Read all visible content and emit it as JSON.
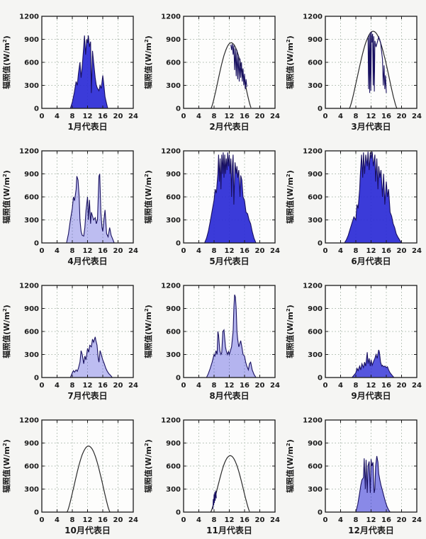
{
  "page": {
    "background": "#f5f5f3",
    "plot_background": "#fdfdfc"
  },
  "axes": {
    "xticks": [
      0,
      4,
      8,
      12,
      16,
      20,
      24
    ],
    "xtick_labels": [
      "0",
      "4",
      "8",
      "12",
      "16",
      "20",
      "24"
    ],
    "yticks": [
      0,
      300,
      600,
      900,
      1200
    ],
    "ytick_labels": [
      "0",
      "300",
      "600",
      "900",
      "1200"
    ],
    "xlim": [
      0,
      24
    ],
    "ylim": [
      0,
      1200
    ],
    "grid": "on",
    "grid_color": "#a9b7aa",
    "border_color": "#1a1a1a",
    "ylabel_pre": "辐照值(W/m",
    "ylabel_sup": "2",
    "ylabel_post": ")",
    "series_fill": "#2a2ad6",
    "series_stroke": "#181060",
    "envelope_stroke": "#2b2b2b"
  },
  "chart_data": [
    {
      "type": "line",
      "month": 1,
      "xlabel": "1月代表日",
      "clear_sky": null,
      "fill_opacity": 0.92,
      "measured": {
        "x": [
          7.5,
          8,
          8.5,
          9,
          9.3,
          9.6,
          10,
          10.3,
          10.6,
          11,
          11.2,
          11.5,
          11.8,
          12,
          12.2,
          12.5,
          12.8,
          13,
          13.3,
          13.6,
          14,
          14.3,
          14.6,
          15,
          15.3,
          15.6,
          16,
          16.3,
          16.6,
          17,
          17.3
        ],
        "y": [
          0,
          80,
          200,
          350,
          300,
          450,
          600,
          400,
          550,
          800,
          950,
          700,
          900,
          850,
          950,
          800,
          870,
          200,
          750,
          600,
          400,
          300,
          260,
          230,
          300,
          260,
          430,
          300,
          150,
          60,
          0
        ]
      }
    },
    {
      "type": "line",
      "month": 2,
      "xlabel": "2月代表日",
      "clear_sky": {
        "rise": 7.2,
        "set": 17.8,
        "peak": 855
      },
      "fill_opacity": 0,
      "measured": {
        "x": [
          12.4,
          12.6,
          12.8,
          13,
          13.2,
          13.4,
          13.6,
          13.8,
          14,
          14.2,
          14.4,
          14.6,
          14.8,
          15,
          15.2,
          15.4,
          15.6,
          15.8,
          16,
          16.2,
          16.4,
          16.6
        ],
        "y": [
          830,
          760,
          840,
          700,
          820,
          500,
          780,
          420,
          760,
          380,
          700,
          350,
          650,
          400,
          600,
          350,
          520,
          300,
          450,
          250,
          380,
          280
        ]
      }
    },
    {
      "type": "line",
      "month": 3,
      "xlabel": "3月代表日",
      "clear_sky": {
        "rise": 6.3,
        "set": 18.8,
        "peak": 1005
      },
      "fill_opacity": 0,
      "measured": {
        "x": [
          11.2,
          11.35,
          11.5,
          11.65,
          11.8,
          11.95,
          12.1,
          12.25,
          12.4,
          12.55,
          12.7,
          12.85,
          13,
          13.15,
          13.3,
          14,
          14.5,
          15,
          15.2,
          15.4,
          15.6,
          15.8,
          16
        ],
        "y": [
          920,
          250,
          960,
          200,
          990,
          230,
          1000,
          860,
          970,
          300,
          940,
          220,
          880,
          840,
          800,
          930,
          860,
          640,
          300,
          560,
          250,
          430,
          200
        ]
      }
    },
    {
      "type": "line",
      "month": 4,
      "xlabel": "4月代表日",
      "clear_sky": null,
      "fill_opacity": 0.3,
      "measured": {
        "x": [
          6.5,
          7,
          7.5,
          8,
          8.3,
          8.6,
          9,
          9.2,
          9.5,
          9.8,
          10,
          10.3,
          10.6,
          11,
          11.3,
          11.6,
          12,
          12.2,
          12.5,
          12.8,
          13,
          13.3,
          13.6,
          14,
          14.3,
          14.6,
          15,
          15.2,
          15.5,
          15.8,
          16,
          16.3,
          16.6,
          17,
          17.4,
          17.8,
          18.2,
          18.6,
          19
        ],
        "y": [
          0,
          120,
          300,
          450,
          600,
          550,
          700,
          870,
          820,
          600,
          300,
          150,
          100,
          90,
          200,
          420,
          600,
          300,
          560,
          250,
          400,
          350,
          300,
          330,
          250,
          300,
          870,
          900,
          400,
          200,
          150,
          300,
          430,
          120,
          80,
          200,
          100,
          50,
          0
        ]
      }
    },
    {
      "type": "line",
      "month": 5,
      "xlabel": "5月代表日",
      "clear_sky": null,
      "fill_opacity": 0.92,
      "measured": {
        "x": [
          5.5,
          6,
          6.5,
          7,
          7.5,
          8,
          8.3,
          8.6,
          9,
          9.2,
          9.4,
          9.6,
          9.8,
          10,
          10.2,
          10.4,
          10.6,
          10.8,
          11,
          11.2,
          11.4,
          11.6,
          11.8,
          12,
          12.2,
          12.4,
          12.6,
          12.8,
          13,
          13.2,
          13.5,
          13.8,
          14,
          14.2,
          14.5,
          14.8,
          15,
          15.3,
          15.6,
          16,
          16.4,
          16.8,
          17.2,
          17.6,
          18,
          18.5,
          19
        ],
        "y": [
          0,
          60,
          150,
          280,
          420,
          560,
          700,
          650,
          900,
          1150,
          800,
          1100,
          700,
          1150,
          900,
          1180,
          850,
          1150,
          900,
          1100,
          950,
          1180,
          1000,
          1150,
          900,
          1100,
          600,
          1000,
          1150,
          500,
          1050,
          900,
          1000,
          850,
          950,
          600,
          880,
          820,
          600,
          550,
          400,
          380,
          300,
          250,
          150,
          60,
          0
        ]
      }
    },
    {
      "type": "line",
      "month": 6,
      "xlabel": "6月代表日",
      "clear_sky": null,
      "fill_opacity": 0.92,
      "measured": {
        "x": [
          5,
          5.5,
          6,
          6.5,
          7,
          7.5,
          8,
          8.3,
          8.6,
          9,
          9.2,
          9.5,
          9.8,
          10,
          10.3,
          10.6,
          11,
          11.2,
          11.5,
          11.8,
          12,
          12.3,
          12.6,
          13,
          13.2,
          13.5,
          13.8,
          14,
          14.3,
          14.6,
          15,
          15.3,
          15.6,
          16,
          16.3,
          16.6,
          17,
          17.4,
          17.8,
          18.2,
          18.6,
          19,
          19.5,
          20
        ],
        "y": [
          0,
          40,
          100,
          180,
          260,
          340,
          300,
          500,
          450,
          700,
          900,
          1150,
          850,
          1180,
          900,
          1150,
          1000,
          1190,
          950,
          1180,
          1100,
          1190,
          1000,
          1150,
          800,
          1100,
          700,
          1000,
          850,
          950,
          600,
          900,
          500,
          800,
          600,
          700,
          400,
          350,
          250,
          200,
          120,
          80,
          40,
          0
        ]
      }
    },
    {
      "type": "line",
      "month": 7,
      "xlabel": "7月代表日",
      "clear_sky": null,
      "fill_opacity": 0.3,
      "measured": {
        "x": [
          7.5,
          8,
          8.3,
          8.6,
          9,
          9.3,
          9.6,
          10,
          10.3,
          10.6,
          11,
          11.3,
          11.6,
          12,
          12.3,
          12.6,
          13,
          13.3,
          13.6,
          14,
          14.2,
          14.5,
          14.8,
          15,
          15.3,
          15.6,
          16,
          16.4,
          16.8,
          17.2,
          17.6,
          18,
          18.5
        ],
        "y": [
          0,
          60,
          90,
          70,
          100,
          80,
          120,
          200,
          350,
          300,
          180,
          280,
          230,
          380,
          330,
          420,
          400,
          500,
          460,
          530,
          480,
          420,
          250,
          200,
          350,
          300,
          230,
          180,
          120,
          80,
          50,
          30,
          0
        ]
      }
    },
    {
      "type": "line",
      "month": 8,
      "xlabel": "8月代表日",
      "clear_sky": null,
      "fill_opacity": 0.35,
      "measured": {
        "x": [
          6,
          6.5,
          7,
          7.5,
          8,
          8.2,
          8.5,
          8.8,
          9,
          9.2,
          9.5,
          9.8,
          10,
          10.3,
          10.6,
          11,
          11.2,
          11.5,
          11.8,
          12,
          12.3,
          12.6,
          13,
          13.2,
          13.4,
          13.6,
          13.8,
          14,
          14.2,
          14.5,
          14.8,
          15,
          15.3,
          15.6,
          16,
          16.3,
          16.6,
          17,
          17.3,
          17.6,
          18,
          18.5,
          19
        ],
        "y": [
          0,
          50,
          120,
          200,
          300,
          280,
          350,
          300,
          600,
          550,
          350,
          300,
          320,
          600,
          620,
          400,
          350,
          300,
          340,
          300,
          350,
          400,
          600,
          900,
          1080,
          1050,
          900,
          600,
          500,
          400,
          450,
          480,
          400,
          300,
          280,
          200,
          150,
          100,
          180,
          200,
          100,
          40,
          0
        ]
      }
    },
    {
      "type": "line",
      "month": 9,
      "xlabel": "9月代表日",
      "clear_sky": null,
      "fill_opacity": 0.8,
      "measured": {
        "x": [
          7,
          7.5,
          8,
          8.3,
          8.6,
          9,
          9.3,
          9.6,
          10,
          10.3,
          10.6,
          11,
          11.2,
          11.5,
          11.8,
          12,
          12.3,
          12.6,
          13,
          13.3,
          13.6,
          14,
          14.2,
          14.5,
          14.8,
          15,
          15.3,
          15.6,
          16,
          16.3,
          16.6,
          17,
          17.5,
          18
        ],
        "y": [
          0,
          30,
          60,
          120,
          90,
          150,
          100,
          180,
          130,
          200,
          150,
          330,
          180,
          250,
          150,
          230,
          160,
          200,
          250,
          300,
          250,
          360,
          330,
          200,
          150,
          160,
          140,
          150,
          130,
          140,
          100,
          60,
          30,
          0
        ]
      }
    },
    {
      "type": "line",
      "month": 10,
      "xlabel": "10月代表日",
      "clear_sky": {
        "rise": 6.6,
        "set": 17.9,
        "peak": 860
      },
      "fill_opacity": 0,
      "measured": null
    },
    {
      "type": "line",
      "month": 11,
      "xlabel": "11月代表日",
      "clear_sky": {
        "rise": 7.1,
        "set": 17.4,
        "peak": 735
      },
      "fill_opacity": 0,
      "measured": {
        "x": [
          7.7,
          7.8,
          7.9,
          8,
          8.1,
          8.2,
          8.3,
          8.45,
          8.6
        ],
        "y": [
          40,
          170,
          90,
          230,
          120,
          260,
          150,
          280,
          180
        ]
      }
    },
    {
      "type": "line",
      "month": 12,
      "xlabel": "12月代表日",
      "clear_sky": null,
      "fill_opacity": 0.55,
      "measured": {
        "x": [
          8,
          8.5,
          9,
          9.3,
          9.6,
          10,
          10.2,
          10.5,
          10.7,
          11,
          11.2,
          11.5,
          11.8,
          12,
          12.2,
          12.5,
          12.8,
          13,
          13.2,
          13.5,
          13.8,
          14,
          14.3,
          14.6,
          15,
          15.4,
          15.8,
          16.2,
          16.6,
          17
        ],
        "y": [
          0,
          100,
          250,
          350,
          420,
          450,
          700,
          300,
          680,
          250,
          600,
          660,
          250,
          690,
          600,
          650,
          250,
          300,
          600,
          730,
          650,
          500,
          420,
          350,
          280,
          200,
          130,
          70,
          30,
          0
        ]
      }
    }
  ]
}
